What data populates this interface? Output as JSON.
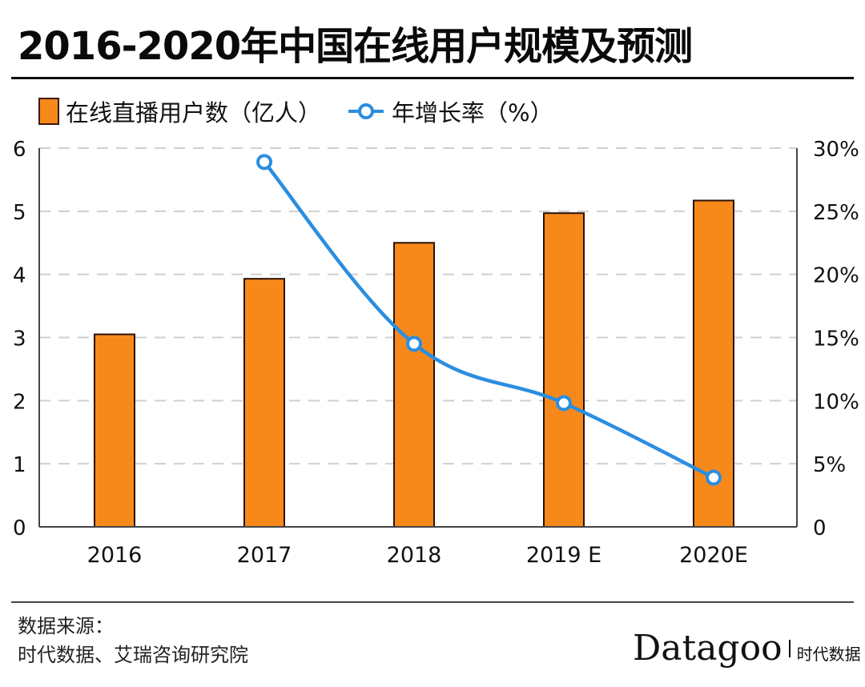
{
  "title": "2016-2020年中国在线用户规模及预测",
  "legend": {
    "bar_label": "在线直播用户数（亿人）",
    "line_label": "年增长率（%）"
  },
  "colors": {
    "bar_fill": "#f7891b",
    "bar_stroke": "#2a1208",
    "line": "#2b8ee0",
    "grid": "#cfcfcf",
    "axis": "#444444"
  },
  "chart_data": {
    "type": "bar",
    "title": "2016-2020年中国在线用户规模及预测",
    "categories": [
      "2016",
      "2017",
      "2018",
      "2019 E",
      "2020E"
    ],
    "series": [
      {
        "name": "在线直播用户数（亿人）",
        "type": "bar",
        "axis": "left",
        "values": [
          3.05,
          3.93,
          4.5,
          4.97,
          5.17
        ]
      },
      {
        "name": "年增长率（%）",
        "type": "line",
        "axis": "right",
        "values": [
          null,
          28.9,
          14.5,
          9.8,
          3.9
        ]
      }
    ],
    "left_axis": {
      "ylim": [
        0,
        6
      ],
      "ticks": [
        "0",
        "1",
        "2",
        "3",
        "4",
        "5",
        "6"
      ]
    },
    "right_axis": {
      "ylim": [
        0,
        30
      ],
      "ticks": [
        "0",
        "5%",
        "10%",
        "15%",
        "20%",
        "25%",
        "30%"
      ]
    },
    "grid": true,
    "legend_position": "top-left"
  },
  "footer": {
    "source_label": "数据来源：",
    "source_text": "时代数据、艾瑞咨询研究院",
    "logo_word": "Datagoo",
    "logo_cn": "时代数据"
  }
}
